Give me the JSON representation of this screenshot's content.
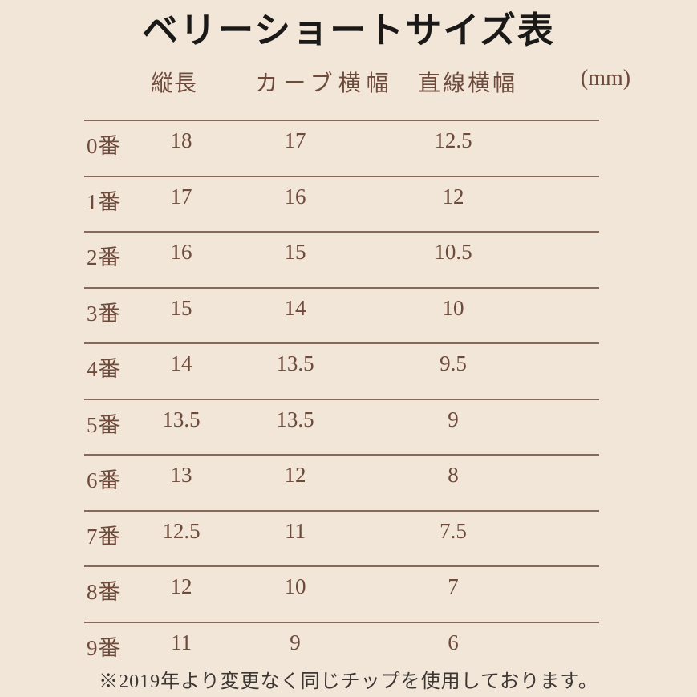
{
  "page": {
    "title": "ベリーショートサイズ表",
    "unit_label": "(mm)",
    "footnote": "※2019年より変更なく同じチップを使用しております。"
  },
  "table": {
    "columns": [
      "縦長",
      "カーブ横幅",
      "直線横幅"
    ],
    "rows": [
      {
        "label": "0番",
        "vertical_length": "18",
        "curve_width": "17",
        "straight_width": "12.5"
      },
      {
        "label": "1番",
        "vertical_length": "17",
        "curve_width": "16",
        "straight_width": "12"
      },
      {
        "label": "2番",
        "vertical_length": "16",
        "curve_width": "15",
        "straight_width": "10.5"
      },
      {
        "label": "3番",
        "vertical_length": "15",
        "curve_width": "14",
        "straight_width": "10"
      },
      {
        "label": "4番",
        "vertical_length": "14",
        "curve_width": "13.5",
        "straight_width": "9.5"
      },
      {
        "label": "5番",
        "vertical_length": "13.5",
        "curve_width": "13.5",
        "straight_width": "9"
      },
      {
        "label": "6番",
        "vertical_length": "13",
        "curve_width": "12",
        "straight_width": "8"
      },
      {
        "label": "7番",
        "vertical_length": "12.5",
        "curve_width": "11",
        "straight_width": "7.5"
      },
      {
        "label": "8番",
        "vertical_length": "12",
        "curve_width": "10",
        "straight_width": "7"
      },
      {
        "label": "9番",
        "vertical_length": "11",
        "curve_width": "9",
        "straight_width": "6"
      }
    ]
  },
  "colors": {
    "background": "#f2e6d8",
    "table_text": "#6e4a3b",
    "rule_line": "#86695a",
    "title_text": "#1b1917",
    "footnote_text": "#3c3733"
  }
}
